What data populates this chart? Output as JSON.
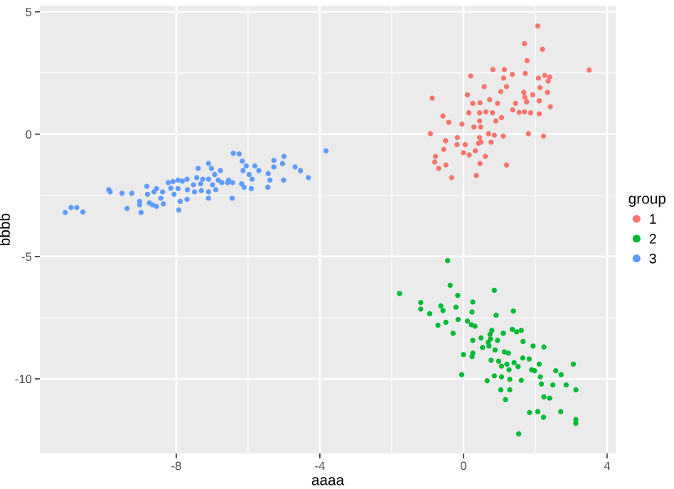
{
  "chart_data": {
    "type": "scatter",
    "xlabel": "aaaa",
    "ylabel": "bbbb",
    "legend_title": "group",
    "legend": "right",
    "grid": true,
    "marker": "circle",
    "xlim": [
      -11.8,
      4.24
    ],
    "ylim": [
      -13.05,
      5.25
    ],
    "xticks": [
      -8,
      -4,
      0,
      4
    ],
    "yticks": [
      -10,
      -5,
      0,
      5
    ],
    "series": [
      {
        "name": "1",
        "color": "#f8766d",
        "x": [
          2.07,
          1.7,
          2.2,
          3.5,
          1.77,
          1.14,
          0.82,
          0.2,
          0.58,
          1.12,
          1.36,
          1.72,
          2.09,
          2.26,
          2.4,
          1.2,
          1.04,
          0.73,
          1.68,
          1.71,
          1.93,
          2.34,
          2.13,
          2.36,
          -0.87,
          0.11,
          0.46,
          0.26,
          0.95,
          1.45,
          1.76,
          2.11,
          2.42,
          1.37,
          1.55,
          1.7,
          1.87,
          2.11,
          0.62,
          0.81,
          0.45,
          0.15,
          1.06,
          0.9,
          0.45,
          -0.57,
          -0.41,
          -0.04,
          0.29,
          0.48,
          -0.92,
          0.7,
          1.81,
          1.11,
          0.86,
          0.45,
          -0.5,
          -0.17,
          2.23,
          0.49,
          0.42,
          0.77,
          0.05,
          -0.18,
          -0.55,
          0.0,
          0.16,
          0.33,
          0.61,
          -0.78,
          -0.8,
          -0.49,
          0.46,
          1.2,
          -0.69,
          -0.33,
          0.36
        ],
        "values": [
          4.42,
          3.7,
          3.47,
          2.62,
          3.0,
          2.64,
          2.64,
          2.38,
          1.94,
          2.29,
          2.44,
          2.48,
          2.29,
          2.4,
          2.33,
          1.94,
          1.74,
          1.41,
          1.71,
          1.51,
          1.61,
          1.71,
          1.9,
          2.17,
          1.47,
          1.61,
          1.28,
          1.26,
          1.26,
          1.26,
          1.32,
          1.36,
          1.12,
          0.99,
          0.89,
          0.91,
          0.87,
          0.83,
          0.91,
          0.87,
          0.87,
          0.87,
          0.68,
          0.54,
          0.54,
          0.74,
          0.48,
          0.41,
          0.29,
          0.29,
          0.02,
          0.02,
          0.02,
          -0.08,
          -0.04,
          -0.14,
          -0.27,
          -0.14,
          -0.08,
          -0.33,
          -0.37,
          -0.33,
          -0.43,
          -0.43,
          -0.62,
          -0.76,
          -0.85,
          -0.68,
          -0.91,
          -0.91,
          -1.14,
          -1.26,
          -1.2,
          -1.26,
          -1.4,
          -1.78,
          -1.69
        ]
      },
      {
        "name": "2",
        "color": "#00ba38",
        "x": [
          -0.44,
          -1.78,
          -0.37,
          0.86,
          -0.16,
          -1.19,
          0.26,
          -1.19,
          -0.63,
          -0.57,
          -0.21,
          1.39,
          0.24,
          -0.94,
          0.91,
          -0.49,
          -0.15,
          0.11,
          -0.71,
          0.22,
          0.32,
          -0.29,
          1.36,
          1.61,
          1.48,
          1.11,
          0.79,
          0.74,
          0.49,
          0.26,
          0.75,
          0.69,
          0.95,
          1.66,
          0.71,
          0.88,
          1.14,
          1.25,
          1.94,
          2.24,
          0.26,
          0.0,
          0.53,
          0.24,
          1.65,
          1.83,
          0.98,
          1.41,
          1.21,
          0.77,
          1.06,
          1.27,
          1.52,
          1.9,
          1.98,
          2.11,
          2.57,
          2.72,
          3.06,
          0.86,
          1.06,
          1.29,
          1.61,
          2.14,
          2.17,
          -0.05,
          0.66,
          1.04,
          1.29,
          2.49,
          2.86,
          3.13,
          2.24,
          2.4,
          1.17,
          1.84,
          2.07,
          2.23,
          2.71,
          3.13,
          3.13,
          1.54
        ],
        "values": [
          -5.17,
          -6.51,
          -6.18,
          -6.38,
          -6.59,
          -6.88,
          -6.86,
          -7.15,
          -7.02,
          -7.21,
          -7.07,
          -7.23,
          -7.27,
          -7.34,
          -7.4,
          -7.69,
          -7.58,
          -7.64,
          -7.81,
          -7.79,
          -7.85,
          -8.14,
          -7.98,
          -8.02,
          -8.08,
          -8.14,
          -8.02,
          -8.18,
          -8.33,
          -8.43,
          -8.37,
          -8.51,
          -8.43,
          -8.47,
          -8.66,
          -8.82,
          -8.9,
          -8.95,
          -8.66,
          -8.7,
          -8.95,
          -9.01,
          -8.72,
          -9.09,
          -9.15,
          -9.19,
          -9.28,
          -9.34,
          -9.4,
          -9.24,
          -9.48,
          -9.63,
          -9.5,
          -9.63,
          -9.67,
          -9.4,
          -9.67,
          -9.83,
          -9.4,
          -9.88,
          -9.92,
          -10.02,
          -10.06,
          -9.92,
          -10.21,
          -9.83,
          -10.08,
          -10.45,
          -10.45,
          -10.25,
          -10.25,
          -10.45,
          -10.74,
          -10.79,
          -10.85,
          -11.38,
          -11.34,
          -11.57,
          -11.34,
          -11.67,
          -11.82,
          -12.25
        ]
      },
      {
        "name": "3",
        "color": "#619cff",
        "x": [
          -3.83,
          -6.41,
          -6.25,
          -5.0,
          -5.28,
          -7.1,
          -6.16,
          -5.81,
          -6.05,
          -5.28,
          -5.04,
          -4.69,
          -4.54,
          -7.39,
          -7.02,
          -6.77,
          -6.93,
          -6.14,
          -5.7,
          -5.97,
          -5.44,
          -4.32,
          -5.01,
          -7.43,
          -7.26,
          -7.1,
          -7.7,
          -7.83,
          -8.22,
          -8.09,
          -7.95,
          -6.83,
          -6.54,
          -6.43,
          -5.89,
          -6.18,
          -6.11,
          -5.91,
          -5.45,
          -5.39,
          -7.52,
          -7.32,
          -6.99,
          -6.73,
          -6.57,
          -8.82,
          -8.15,
          -7.95,
          -7.69,
          -7.49,
          -7.3,
          -7.1,
          -6.9,
          -8.55,
          -8.62,
          -8.38,
          -8.06,
          -9.88,
          -9.84,
          -9.51,
          -9.24,
          -8.8,
          -8.43,
          -7.7,
          -7.1,
          -6.44,
          -9.02,
          -8.75,
          -8.66,
          -8.55,
          -8.36,
          -9.02,
          -7.89,
          -9.37,
          -7.93,
          -8.98,
          -11.09,
          -10.93,
          -10.77,
          -10.6
        ],
        "values": [
          -0.68,
          -0.78,
          -0.81,
          -0.91,
          -1.07,
          -1.2,
          -1.1,
          -1.3,
          -1.3,
          -1.34,
          -1.2,
          -1.34,
          -1.49,
          -1.4,
          -1.4,
          -1.49,
          -1.65,
          -1.49,
          -1.49,
          -1.65,
          -1.61,
          -1.78,
          -1.88,
          -1.78,
          -1.84,
          -1.84,
          -1.84,
          -1.92,
          -1.98,
          -1.94,
          -1.88,
          -1.88,
          -1.88,
          -1.98,
          -1.84,
          -2.03,
          -2.17,
          -2.23,
          -2.17,
          -1.88,
          -2.07,
          -2.03,
          -2.07,
          -1.98,
          -1.98,
          -2.13,
          -2.21,
          -2.23,
          -2.27,
          -2.36,
          -2.31,
          -2.36,
          -2.27,
          -2.23,
          -2.36,
          -2.36,
          -2.46,
          -2.27,
          -2.36,
          -2.42,
          -2.42,
          -2.46,
          -2.62,
          -2.66,
          -2.62,
          -2.62,
          -2.75,
          -2.81,
          -2.89,
          -2.95,
          -2.85,
          -2.89,
          -2.75,
          -3.04,
          -3.1,
          -3.2,
          -3.2,
          -3.0,
          -3.0,
          -3.18
        ]
      }
    ]
  }
}
